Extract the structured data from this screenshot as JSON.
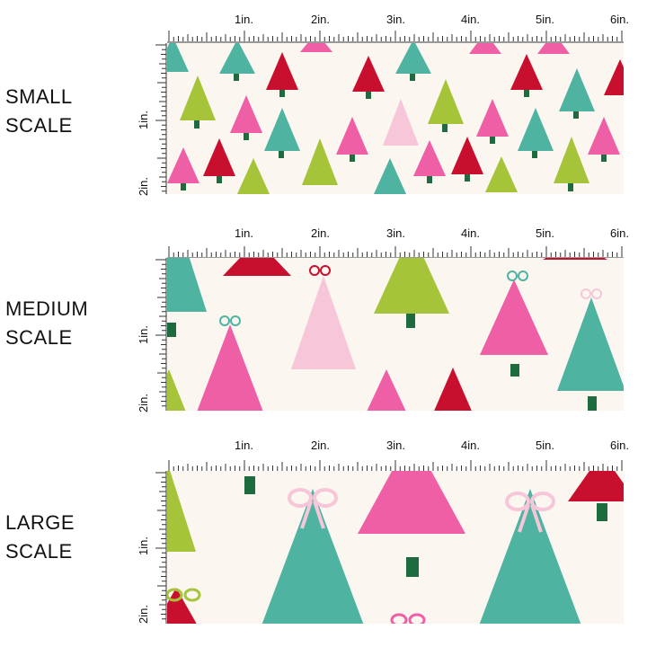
{
  "rulers": {
    "top_ticks": [
      "1in.",
      "2in.",
      "3in.",
      "4in.",
      "5in.",
      "6in."
    ],
    "left_ticks": [
      "1in.",
      "2in."
    ]
  },
  "rows": [
    {
      "id": "small",
      "label_line1": "SMALL",
      "label_line2": "SCALE"
    },
    {
      "id": "medium",
      "label_line1": "MEDIUM",
      "label_line2": "SCALE"
    },
    {
      "id": "large",
      "label_line1": "LARGE",
      "label_line2": "SCALE"
    }
  ],
  "colors": {
    "background": "#fbf6f0",
    "teal": "#4fb3a1",
    "pink": "#ee5fa6",
    "light_pink": "#f7c6d8",
    "red": "#c8102e",
    "green": "#a5c43a",
    "trunk": "#1e6b3f"
  }
}
